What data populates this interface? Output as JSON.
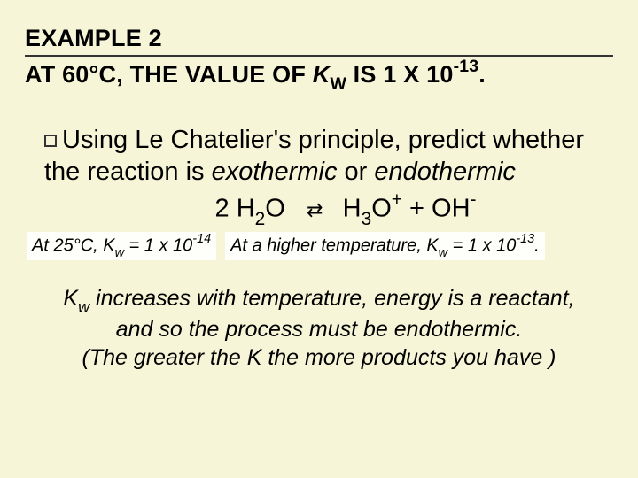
{
  "header": {
    "line1": "EXAMPLE 2",
    "line2_a": "AT 60°C, THE VALUE OF ",
    "line2_k": "K",
    "line2_sub": "W",
    "line2_b": " IS 1 X 10",
    "line2_sup": "-13",
    "line2_c": "."
  },
  "body": {
    "p1_a": "Using Le Chatelier's principle, predict whether the reaction is ",
    "p1_exo": "exothermic",
    "p1_or": " or ",
    "p1_endo": "endothermic"
  },
  "equation": {
    "lhs_a": "2 H",
    "lhs_sub": "2",
    "lhs_b": "O",
    "arrow": "⇄",
    "rhs_a": "H",
    "rhs_sub1": "3",
    "rhs_b": "O",
    "rhs_sup1": "+",
    "plus": " + ",
    "rhs_c": "OH",
    "rhs_sup2": "-"
  },
  "notes": {
    "n1_a": "At 25°C, K",
    "n1_sub": "w",
    "n1_b": " = 1 x 10",
    "n1_sup": "-14",
    "n2_a": "At a higher temperature, K",
    "n2_sub": "w",
    "n2_b": " = 1 x 10",
    "n2_sup": "-13",
    "n2_c": "."
  },
  "conclusion": {
    "c_a": "K",
    "c_sub": "w",
    "c_b": " increases with temperature, energy is a reactant, and so the process must be endothermic."
  },
  "partial": {
    "text": "(The greater the K  the more products you have )"
  },
  "colors": {
    "background": "#f7f5d8",
    "text": "#000000",
    "underline": "#333333",
    "note_bg": "#fefefa"
  }
}
